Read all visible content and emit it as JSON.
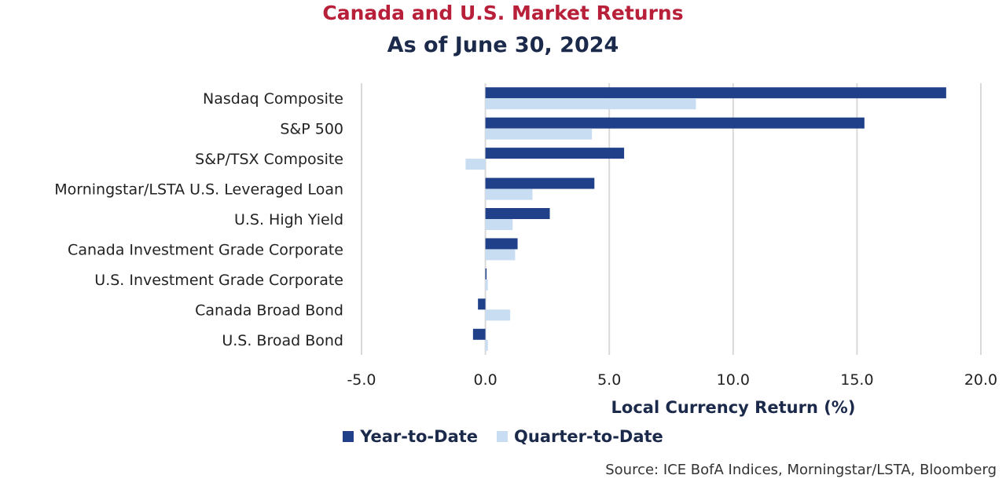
{
  "title": "Canada and U.S. Market Returns",
  "subtitle": "As of June 30, 2024",
  "source": "Source: ICE BofA Indices, Morningstar/LSTA, Bloomberg",
  "colors": {
    "title": "#b8203a",
    "subtitle": "#1b2a4a",
    "ytd": "#20408a",
    "qtd": "#c8ddf2"
  },
  "chart_data": {
    "type": "bar",
    "orientation": "horizontal",
    "categories": [
      "Nasdaq Composite",
      "S&P 500",
      "S&P/TSX Composite",
      "Morningstar/LSTA U.S. Leveraged Loan",
      "U.S. High Yield",
      "Canada Investment Grade Corporate",
      "U.S. Investment Grade Corporate",
      "Canada Broad Bond",
      "U.S. Broad Bond"
    ],
    "series": [
      {
        "name": "Year-to-Date",
        "values": [
          18.6,
          15.3,
          5.6,
          4.4,
          2.6,
          1.3,
          0.0,
          -0.3,
          -0.5
        ]
      },
      {
        "name": "Quarter-to-Date",
        "values": [
          8.5,
          4.3,
          -0.8,
          1.9,
          1.1,
          1.2,
          0.1,
          1.0,
          0.1
        ]
      }
    ],
    "xlabel": "Local Currency Return (%)",
    "ylabel": "",
    "xlim": [
      -5.0,
      20.0
    ],
    "xticks": [
      "-5.0",
      "0.0",
      "5.0",
      "10.0",
      "15.0",
      "20.0"
    ],
    "grid": true,
    "legend_position": "bottom"
  }
}
